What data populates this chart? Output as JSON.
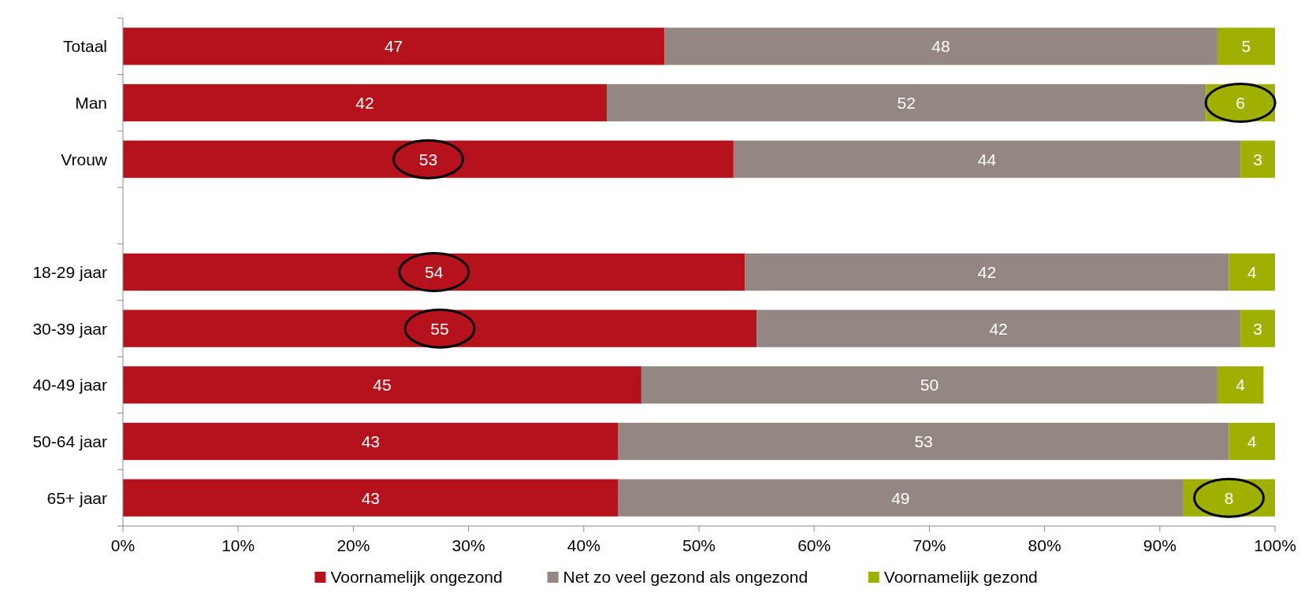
{
  "chart_data": {
    "type": "bar",
    "orientation": "horizontal",
    "stacked": true,
    "categories": [
      "Totaal",
      "Man",
      "Vrouw",
      null,
      "18-29 jaar",
      "30-39 jaar",
      "40-49 jaar",
      "50-64 jaar",
      "65+ jaar"
    ],
    "series": [
      {
        "name": "Voornamelijk ongezond",
        "color": "#b5121b",
        "values": [
          47,
          42,
          53,
          null,
          54,
          55,
          45,
          43,
          43
        ]
      },
      {
        "name": "Net zo veel gezond als ongezond",
        "color": "#948781",
        "values": [
          48,
          52,
          44,
          null,
          42,
          42,
          50,
          53,
          49
        ]
      },
      {
        "name": "Voornamelijk gezond",
        "color": "#a0b000",
        "values": [
          5,
          6,
          3,
          null,
          4,
          3,
          4,
          4,
          8
        ]
      }
    ],
    "xlim": [
      0,
      100
    ],
    "xticks": [
      {
        "value": 0,
        "label": "0%"
      },
      {
        "value": 10,
        "label": "10%"
      },
      {
        "value": 20,
        "label": "20%"
      },
      {
        "value": 30,
        "label": "30%"
      },
      {
        "value": 40,
        "label": "40%"
      },
      {
        "value": 50,
        "label": "50%"
      },
      {
        "value": 60,
        "label": "60%"
      },
      {
        "value": 70,
        "label": "70%"
      },
      {
        "value": 80,
        "label": "80%"
      },
      {
        "value": 90,
        "label": "90%"
      },
      {
        "value": 100,
        "label": "100%"
      }
    ],
    "data_labels": true,
    "grid": false,
    "legend": "bottom"
  }
}
